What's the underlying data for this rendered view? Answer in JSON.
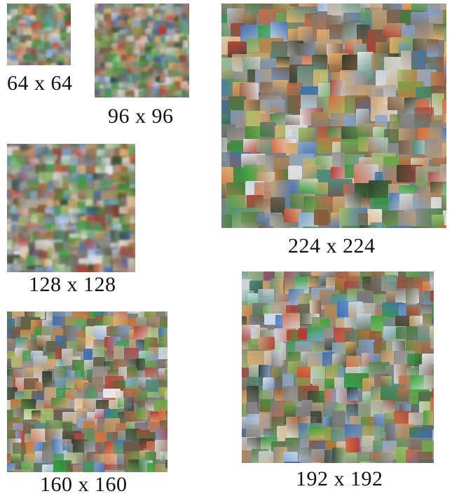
{
  "figure": {
    "panels": [
      {
        "id": "p64",
        "label": "64 x 64",
        "size": 64
      },
      {
        "id": "p96",
        "label": "96 x 96",
        "size": 96
      },
      {
        "id": "p224",
        "label": "224 x 224",
        "size": 224
      },
      {
        "id": "p128",
        "label": "128 x 128",
        "size": 128
      },
      {
        "id": "p160",
        "label": "160 x 160",
        "size": 160
      },
      {
        "id": "p192",
        "label": "192 x 192",
        "size": 192
      }
    ],
    "palette": [
      "#7a7a7a",
      "#8c8c8c",
      "#5e6b4e",
      "#3f7f3a",
      "#2fa33a",
      "#6da74b",
      "#a0c46a",
      "#b48650",
      "#8a5a3a",
      "#c4a27a",
      "#d9d3c4",
      "#c8d8e8",
      "#7ea6d8",
      "#3b6fb8",
      "#b83a33",
      "#d86a3a",
      "#e7b06a",
      "#4e8c7a",
      "#2f3d2f",
      "#a9a59a",
      "#e8e8e8",
      "#6b5b4b"
    ]
  }
}
